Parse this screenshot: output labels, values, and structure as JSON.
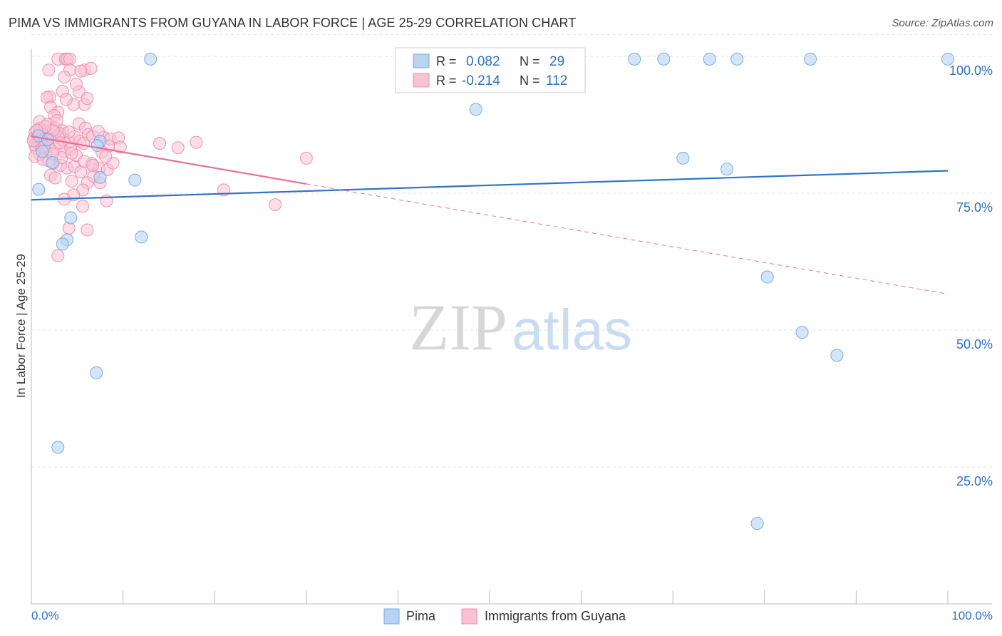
{
  "chart_data": {
    "type": "scatter",
    "title": "PIMA VS IMMIGRANTS FROM GUYANA IN LABOR FORCE | AGE 25-29 CORRELATION CHART",
    "source": "Source: ZipAtlas.com",
    "xlabel": "",
    "ylabel": "In Labor Force | Age 25-29",
    "xlim": [
      0,
      100
    ],
    "ylim": [
      0,
      104
    ],
    "x_tick_labels": [
      "0.0%",
      "100.0%"
    ],
    "y_ticks": [
      25,
      50,
      75,
      100
    ],
    "y_tick_labels": [
      "25.0%",
      "50.0%",
      "75.0%",
      "100.0%"
    ],
    "grid": true,
    "watermark": {
      "left": "ZIP",
      "right": "atlas"
    },
    "legend_top": [
      {
        "r_label": "R =",
        "r_value": "0.082",
        "n_label": "N =",
        "n_value": "29"
      },
      {
        "r_label": "R =",
        "r_value": "-0.214",
        "n_label": "N =",
        "n_value": "112"
      }
    ],
    "colors": {
      "pima_fill": "#b9d3f3",
      "pima_stroke": "#7aaae6",
      "pima_line": "#2f74c8",
      "guyana_fill": "#f7c3d4",
      "guyana_stroke": "#ee8fb0",
      "guyana_line": "#e8709b",
      "accent_text": "#2f6fc4",
      "grid": "#e3e3e3"
    },
    "series": [
      {
        "name": "Pima",
        "trend": {
          "x0": 0,
          "y0": 73.8,
          "x1": 100,
          "y1": 79.1
        },
        "points": [
          [
            13,
            99.5
          ],
          [
            65.8,
            99.5
          ],
          [
            69,
            99.5
          ],
          [
            74,
            99.5
          ],
          [
            77,
            99.5
          ],
          [
            85,
            99.5
          ],
          [
            100,
            99.5
          ],
          [
            48.5,
            90.3
          ],
          [
            71.1,
            81.4
          ],
          [
            75.9,
            79.4
          ],
          [
            7.5,
            84.5
          ],
          [
            7.2,
            83.7
          ],
          [
            7.5,
            77.9
          ],
          [
            11.3,
            77.4
          ],
          [
            0.8,
            75.7
          ],
          [
            4.3,
            70.5
          ],
          [
            12,
            67
          ],
          [
            3.9,
            66.5
          ],
          [
            3.4,
            65.7
          ],
          [
            80.3,
            59.7
          ],
          [
            84.1,
            49.6
          ],
          [
            87.9,
            45.4
          ],
          [
            7.1,
            42.2
          ],
          [
            2.9,
            28.6
          ],
          [
            79.2,
            14.7
          ],
          [
            0.8,
            85.5
          ],
          [
            1.8,
            84.8
          ],
          [
            2.3,
            80.6
          ],
          [
            1.2,
            82.6
          ]
        ]
      },
      {
        "name": "Immigrants from Guyana",
        "trend": {
          "x0": 0,
          "y0": 85.4,
          "x1": 30,
          "y1": 76.7,
          "dash_x1": 100,
          "dash_y1": 56.6
        },
        "points": [
          [
            2.9,
            99.5
          ],
          [
            3.7,
            99.5
          ],
          [
            3.9,
            99.5
          ],
          [
            4.2,
            99.5
          ],
          [
            1.9,
            97.5
          ],
          [
            4.2,
            97.5
          ],
          [
            5.8,
            97.5
          ],
          [
            6.5,
            97.8
          ],
          [
            5.4,
            97.3
          ],
          [
            3.6,
            96.2
          ],
          [
            3.4,
            93.6
          ],
          [
            2,
            92.6
          ],
          [
            1.7,
            92.5
          ],
          [
            5.2,
            93.5
          ],
          [
            4.6,
            91.2
          ],
          [
            5.8,
            91.2
          ],
          [
            3.8,
            92.1
          ],
          [
            2.1,
            90.7
          ],
          [
            2.9,
            89.8
          ],
          [
            2.5,
            89.2
          ],
          [
            0.9,
            88.1
          ],
          [
            1.8,
            87.6
          ],
          [
            2.6,
            86.9
          ],
          [
            3.4,
            86.4
          ],
          [
            5.2,
            87.7
          ],
          [
            5.9,
            86.9
          ],
          [
            1.5,
            86.4
          ],
          [
            0.4,
            86.1
          ],
          [
            0.8,
            85.9
          ],
          [
            1.3,
            85.7
          ],
          [
            0.6,
            85.3
          ],
          [
            0.3,
            85.1
          ],
          [
            1.7,
            84.9
          ],
          [
            2.2,
            84.7
          ],
          [
            1.1,
            84.4
          ],
          [
            0.7,
            84.1
          ],
          [
            0.4,
            83.8
          ],
          [
            1.8,
            83.6
          ],
          [
            2.9,
            85.5
          ],
          [
            3.5,
            84.8
          ],
          [
            4.1,
            84.3
          ],
          [
            4.7,
            85.3
          ],
          [
            5.3,
            84.5
          ],
          [
            6.2,
            85.7
          ],
          [
            7.9,
            85.2
          ],
          [
            8.6,
            84.9
          ],
          [
            9.5,
            85.1
          ],
          [
            9.7,
            83.4
          ],
          [
            8.4,
            83.6
          ],
          [
            7.7,
            82.5
          ],
          [
            0.5,
            83.2
          ],
          [
            1.1,
            82.9
          ],
          [
            1.6,
            82.5
          ],
          [
            2.6,
            83.1
          ],
          [
            3.6,
            82.6
          ],
          [
            4.3,
            83.1
          ],
          [
            0.9,
            82.1
          ],
          [
            0.4,
            81.7
          ],
          [
            1.3,
            81.2
          ],
          [
            2.4,
            80.5
          ],
          [
            3.2,
            80.1
          ],
          [
            3.9,
            79.6
          ],
          [
            4.7,
            79.9
          ],
          [
            5.4,
            78.9
          ],
          [
            6.6,
            80.4
          ],
          [
            7.4,
            79.6
          ],
          [
            8.3,
            79.3
          ],
          [
            8.9,
            80.5
          ],
          [
            2.1,
            78.3
          ],
          [
            2.6,
            77.8
          ],
          [
            4.4,
            77.2
          ],
          [
            6.1,
            76.9
          ],
          [
            6.8,
            78.1
          ],
          [
            7.5,
            76.9
          ],
          [
            5.6,
            75.6
          ],
          [
            4.6,
            74.7
          ],
          [
            3.6,
            73.9
          ],
          [
            8.2,
            73.6
          ],
          [
            5.6,
            72.6
          ],
          [
            4.1,
            68.6
          ],
          [
            6.1,
            68.3
          ],
          [
            2.9,
            63.6
          ],
          [
            14,
            84.1
          ],
          [
            16,
            83.3
          ],
          [
            18,
            84.3
          ],
          [
            21,
            75.6
          ],
          [
            26.6,
            72.9
          ],
          [
            30,
            81.4
          ],
          [
            3.1,
            85.9
          ],
          [
            2.4,
            86.5
          ],
          [
            0.9,
            86.8
          ],
          [
            1.5,
            87.2
          ],
          [
            2.8,
            88.3
          ],
          [
            4.1,
            86.2
          ],
          [
            6.7,
            85.4
          ],
          [
            5.7,
            84.1
          ],
          [
            4.9,
            81.9
          ],
          [
            3.3,
            81.5
          ],
          [
            1.9,
            80.9
          ],
          [
            5.8,
            80.8
          ],
          [
            6.7,
            80.1
          ],
          [
            4.4,
            82.3
          ],
          [
            8.1,
            81.7
          ],
          [
            1.1,
            84.9
          ],
          [
            0.2,
            84.6
          ],
          [
            0.6,
            86.5
          ],
          [
            1.4,
            83.5
          ],
          [
            2.3,
            82.2
          ],
          [
            3.1,
            84.2
          ],
          [
            6.1,
            92.3
          ],
          [
            4.9,
            94.9
          ],
          [
            7.3,
            86.3
          ]
        ]
      }
    ]
  }
}
